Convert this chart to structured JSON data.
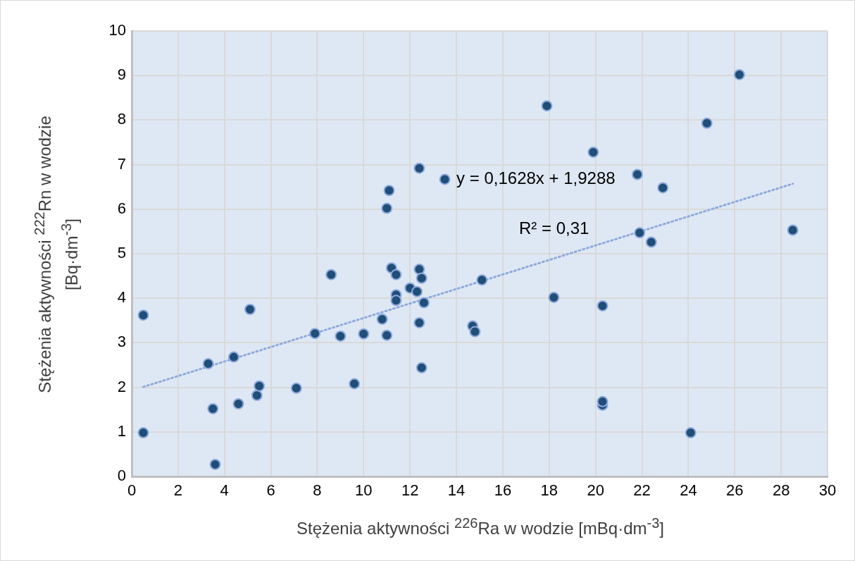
{
  "chart_data": {
    "type": "scatter",
    "xlabel": "Stężenia aktywności $^{226}$Ra w wodzie [mBq·dm$^{-3}$]",
    "ylabel": "Stężenia aktywności $^{222}$Rn w wodzie [Bq·dm$^{-3}$]",
    "xlim": [
      0,
      30
    ],
    "xticks": [
      0,
      2,
      4,
      6,
      8,
      10,
      12,
      14,
      16,
      18,
      20,
      22,
      24,
      26,
      28,
      30
    ],
    "ylim": [
      0,
      10
    ],
    "yticks": [
      0,
      1,
      2,
      3,
      4,
      5,
      6,
      7,
      8,
      9,
      10
    ],
    "grid": true,
    "annotations": [
      "y = 0,1628x + 1,9288",
      "R² = 0,31"
    ],
    "series": [
      {
        "type": "scatter",
        "color": "#1f4e79",
        "marker": "circle",
        "x": [
          0.5,
          0.5,
          3.3,
          3.5,
          3.6,
          4.4,
          4.6,
          5.1,
          5.4,
          5.5,
          7.1,
          7.9,
          8.6,
          9.0,
          9.6,
          10.0,
          10.8,
          11.0,
          11.0,
          11.1,
          11.2,
          11.4,
          11.4,
          11.4,
          12.0,
          12.3,
          12.4,
          12.4,
          12.4,
          12.5,
          12.5,
          12.6,
          13.5,
          14.7,
          14.8,
          15.1,
          17.9,
          18.2,
          19.9,
          20.3,
          20.3,
          20.3,
          21.8,
          21.9,
          22.4,
          22.9,
          24.1,
          24.8,
          26.2,
          28.5
        ],
        "values": [
          3.62,
          0.98,
          2.53,
          1.52,
          0.27,
          2.68,
          1.63,
          3.75,
          1.82,
          2.03,
          1.98,
          3.21,
          4.53,
          3.15,
          2.08,
          3.2,
          3.53,
          3.17,
          6.02,
          6.42,
          4.68,
          4.53,
          4.08,
          3.95,
          4.23,
          4.15,
          4.65,
          3.45,
          6.92,
          4.45,
          2.44,
          3.9,
          6.67,
          3.38,
          3.25,
          4.41,
          8.32,
          4.02,
          7.28,
          3.83,
          1.6,
          1.68,
          6.78,
          5.47,
          5.26,
          6.48,
          0.98,
          7.93,
          9.02,
          5.53
        ]
      },
      {
        "type": "line",
        "color": "#8faadc",
        "line_style": "dotted",
        "marker": "none",
        "x": [
          0.5,
          28.5
        ],
        "values": [
          2.01,
          6.57
        ]
      }
    ]
  }
}
